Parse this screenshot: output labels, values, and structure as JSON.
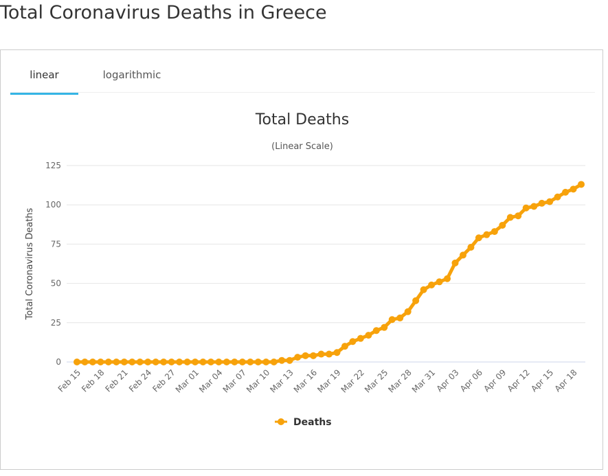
{
  "page": {
    "title": "Total Coronavirus Deaths in Greece"
  },
  "tabs": [
    {
      "label": "linear",
      "active": true
    },
    {
      "label": "logarithmic",
      "active": false
    }
  ],
  "colors": {
    "series": "#f7a20b",
    "tab_active": "#35b5e5"
  },
  "chart_data": {
    "type": "line",
    "title": "Total Deaths",
    "subtitle": "(Linear Scale)",
    "xlabel": "",
    "ylabel": "Total Coronavirus Deaths",
    "ylim": [
      0,
      125
    ],
    "yticks": [
      0,
      25,
      50,
      75,
      100,
      125
    ],
    "grid": true,
    "legend": "bottom-center",
    "x_tick_labels": [
      "Feb 15",
      "Feb 18",
      "Feb 21",
      "Feb 24",
      "Feb 27",
      "Mar 01",
      "Mar 04",
      "Mar 07",
      "Mar 10",
      "Mar 13",
      "Mar 16",
      "Mar 19",
      "Mar 22",
      "Mar 25",
      "Mar 28",
      "Mar 31",
      "Apr 03",
      "Apr 06",
      "Apr 09",
      "Apr 12",
      "Apr 15",
      "Apr 18"
    ],
    "series": [
      {
        "name": "Deaths",
        "values": [
          0,
          0,
          0,
          0,
          0,
          0,
          0,
          0,
          0,
          0,
          0,
          0,
          0,
          0,
          0,
          0,
          0,
          0,
          0,
          0,
          0,
          0,
          0,
          0,
          0,
          0,
          1,
          1,
          3,
          4,
          4,
          5,
          5,
          6,
          10,
          13,
          15,
          17,
          20,
          22,
          27,
          28,
          32,
          39,
          46,
          49,
          51,
          53,
          63,
          68,
          73,
          79,
          81,
          83,
          87,
          92,
          93,
          98,
          99,
          101,
          102,
          105,
          108,
          110,
          113
        ]
      }
    ]
  }
}
